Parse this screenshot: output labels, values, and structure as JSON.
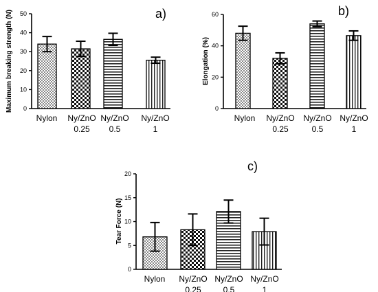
{
  "chart_data": [
    {
      "type": "bar",
      "panel_label": "a)",
      "ylabel": "Maximum breaking strength (N)",
      "ylim": [
        0,
        50
      ],
      "yticks": [
        0,
        10,
        20,
        30,
        40,
        50
      ],
      "categories": [
        [
          "Nylon"
        ],
        [
          "Ny/ZnO",
          "0.25"
        ],
        [
          "Ny/ZnO",
          "0.5"
        ],
        [
          "Ny/ZnO",
          "1"
        ]
      ],
      "patterns": [
        "crosshatch-fine",
        "checker",
        "horizontal-lines",
        "vertical-lines"
      ],
      "values": [
        34,
        31.5,
        36.5,
        25.5
      ],
      "errors": [
        4,
        4,
        3.2,
        1.6
      ]
    },
    {
      "type": "bar",
      "panel_label": "b)",
      "ylabel": "Elongation (%)",
      "ylim": [
        0,
        60
      ],
      "yticks": [
        0,
        20,
        40,
        60
      ],
      "categories": [
        [
          "Nylon"
        ],
        [
          "Ny/ZnO",
          "0.25"
        ],
        [
          "Ny/ZnO",
          "0.5"
        ],
        [
          "Ny/ZnO",
          "1"
        ]
      ],
      "patterns": [
        "crosshatch-fine",
        "checker",
        "horizontal-lines",
        "vertical-lines"
      ],
      "values": [
        48,
        32,
        54,
        46.5
      ],
      "errors": [
        4.5,
        3.5,
        1.8,
        3
      ]
    },
    {
      "type": "bar",
      "panel_label": "c)",
      "ylabel": "Tear Force (N)",
      "ylim": [
        0,
        20
      ],
      "yticks": [
        0,
        5,
        10,
        15,
        20
      ],
      "categories": [
        [
          "Nylon"
        ],
        [
          "Ny/ZnO",
          "0.25"
        ],
        [
          "Ny/ZnO",
          "0.5"
        ],
        [
          "Ny/ZnO",
          "1"
        ]
      ],
      "patterns": [
        "crosshatch-fine",
        "checker",
        "horizontal-lines",
        "vertical-lines"
      ],
      "values": [
        6.8,
        8.3,
        12.1,
        7.9
      ],
      "errors": [
        3,
        3.3,
        2.4,
        2.8
      ]
    }
  ]
}
